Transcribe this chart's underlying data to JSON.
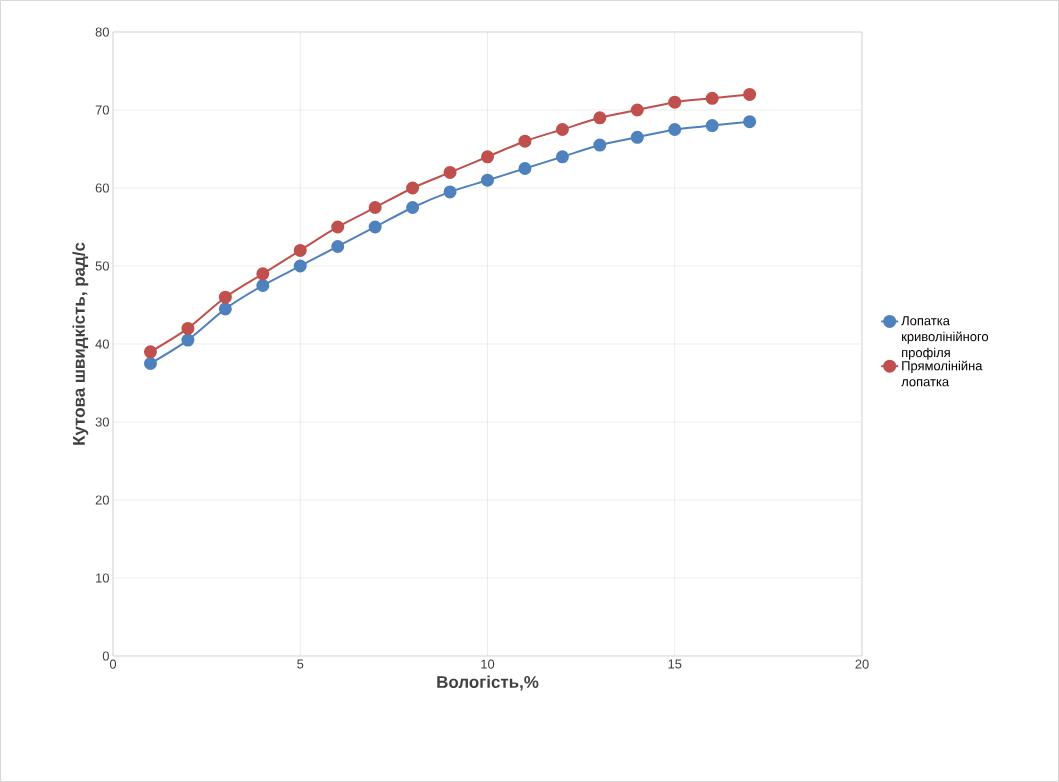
{
  "chart_data": {
    "type": "line",
    "xlabel": "Вологість,%",
    "ylabel": "Кутова швидкість, рад/с",
    "x": [
      1,
      2,
      3,
      4,
      5,
      6,
      7,
      8,
      9,
      10,
      11,
      12,
      13,
      14,
      15,
      16,
      17
    ],
    "series": [
      {
        "name": "Лопатка криволінійного профіля",
        "color": "#4f81bd",
        "values": [
          37.5,
          40.5,
          44.5,
          47.5,
          50,
          52.5,
          55,
          57.5,
          59.5,
          61,
          62.5,
          64,
          65.5,
          66.5,
          67.5,
          68,
          68.5
        ]
      },
      {
        "name": "Прямолінійна лопатка",
        "color": "#c0504d",
        "values": [
          39,
          42,
          46,
          49,
          52,
          55,
          57.5,
          60,
          62,
          64,
          66,
          67.5,
          69,
          70,
          71,
          71.5,
          72
        ]
      }
    ],
    "xlim": [
      0,
      20
    ],
    "xticks": [
      0,
      5,
      10,
      15,
      20
    ],
    "ylim": [
      0,
      80
    ],
    "yticks": [
      0,
      10,
      20,
      30,
      40,
      50,
      60,
      70,
      80
    ],
    "grid": true,
    "legend": "right",
    "marker": "circle",
    "line_style": "solid"
  }
}
